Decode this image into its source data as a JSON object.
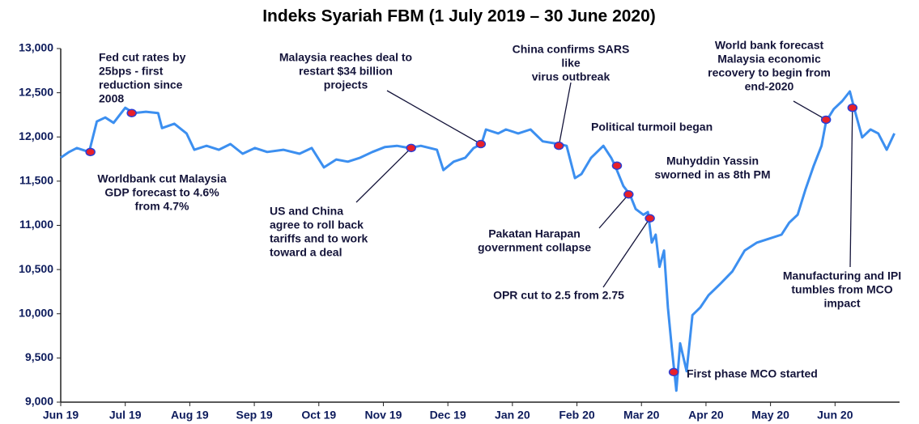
{
  "chart_data": {
    "type": "line",
    "title": "Indeks Syariah FBM  (1 July 2019 – 30 June 2020)",
    "xlim": [
      0,
      13
    ],
    "xticks": [
      {
        "value": 0,
        "label": "Jun 19"
      },
      {
        "value": 1,
        "label": "Jul 19"
      },
      {
        "value": 2,
        "label": "Aug 19"
      },
      {
        "value": 3,
        "label": "Sep 19"
      },
      {
        "value": 4,
        "label": "Oct 19"
      },
      {
        "value": 5,
        "label": "Nov 19"
      },
      {
        "value": 6,
        "label": "Dec 19"
      },
      {
        "value": 7,
        "label": "Jan 20"
      },
      {
        "value": 8,
        "label": "Feb 20"
      },
      {
        "value": 9,
        "label": "Mar 20"
      },
      {
        "value": 10,
        "label": "Apr 20"
      },
      {
        "value": 11,
        "label": "May 20"
      },
      {
        "value": 12,
        "label": "Jun 20"
      }
    ],
    "ylim": [
      9000,
      13000
    ],
    "yticks": [
      {
        "value": 9000,
        "label": "9,000"
      },
      {
        "value": 9500,
        "label": "9,500"
      },
      {
        "value": 10000,
        "label": "10,000"
      },
      {
        "value": 10500,
        "label": "10,500"
      },
      {
        "value": 11000,
        "label": "11,000"
      },
      {
        "value": 11500,
        "label": "11,500"
      },
      {
        "value": 12000,
        "label": "12,000"
      },
      {
        "value": 12500,
        "label": "12,500"
      },
      {
        "value": 13000,
        "label": "13,000"
      }
    ],
    "grid": false,
    "color": "#3c8ff0",
    "x": [
      0,
      0.13,
      0.25,
      0.44,
      0.56,
      0.69,
      0.82,
      1.0,
      1.13,
      1.32,
      1.51,
      1.57,
      1.76,
      1.95,
      2.07,
      2.26,
      2.45,
      2.63,
      2.82,
      3.01,
      3.2,
      3.45,
      3.7,
      3.89,
      4.08,
      4.27,
      4.45,
      4.64,
      4.83,
      5.02,
      5.21,
      5.4,
      5.58,
      5.83,
      5.93,
      6.09,
      6.27,
      6.4,
      6.52,
      6.59,
      6.78,
      6.9,
      7.09,
      7.28,
      7.47,
      7.72,
      7.84,
      7.97,
      8.07,
      8.22,
      8.41,
      8.53,
      8.59,
      8.72,
      8.82,
      8.91,
      9.03,
      9.1,
      9.16,
      9.22,
      9.28,
      9.35,
      9.41,
      9.47,
      9.54,
      9.6,
      9.7,
      9.79,
      9.91,
      10.04,
      10.23,
      10.41,
      10.6,
      10.79,
      10.98,
      11.17,
      11.29,
      11.42,
      11.54,
      11.67,
      11.79,
      11.86,
      11.98,
      12.11,
      12.23,
      12.3,
      12.42,
      12.55,
      12.67,
      12.8,
      12.92
    ],
    "values": [
      11765,
      11830,
      11875,
      11830,
      12175,
      12220,
      12160,
      12330,
      12270,
      12285,
      12270,
      12100,
      12150,
      12040,
      11855,
      11900,
      11855,
      11920,
      11810,
      11875,
      11830,
      11855,
      11810,
      11875,
      11655,
      11745,
      11720,
      11765,
      11830,
      11885,
      11900,
      11875,
      11900,
      11855,
      11625,
      11720,
      11765,
      11875,
      11920,
      12085,
      12040,
      12085,
      12040,
      12085,
      11950,
      11920,
      11900,
      11535,
      11580,
      11765,
      11900,
      11765,
      11675,
      11445,
      11350,
      11185,
      11120,
      11150,
      10805,
      10895,
      10530,
      10715,
      10070,
      9615,
      9130,
      9665,
      9350,
      9985,
      10070,
      10210,
      10345,
      10480,
      10715,
      10805,
      10850,
      10895,
      11030,
      11120,
      11400,
      11675,
      11900,
      12175,
      12315,
      12405,
      12515,
      12315,
      11995,
      12085,
      12040,
      11855,
      12040
    ],
    "annotations": [
      {
        "lines": [
          "Worldbank cut Malaysia",
          "GDP forecast to 4.6%",
          "from 4.7%"
        ],
        "x": 0.46,
        "y": 11830
      },
      {
        "lines": [
          "Fed cut rates by",
          "25bps - first",
          "reduction since",
          "2008"
        ],
        "x": 1.1,
        "y": 12270
      },
      {
        "lines": [
          "US and China",
          "agree to roll back",
          "tariffs and to work",
          "toward a deal"
        ],
        "x": 5.43,
        "y": 11875
      },
      {
        "lines": [
          "Malaysia reaches deal to",
          "restart $34 billion",
          "projects"
        ],
        "x": 6.51,
        "y": 11920
      },
      {
        "lines": [
          "China confirms SARS",
          "like",
          "virus outbreak"
        ],
        "x": 7.72,
        "y": 11900
      },
      {
        "lines": [
          "Political turmoil began"
        ]
      },
      {
        "lines": [
          "Muhyddin Yassin",
          "sworned in as 8th PM"
        ],
        "x": 8.62,
        "y": 11675
      },
      {
        "lines": [
          "Pakatan Harapan",
          "government collapse"
        ],
        "x": 8.8,
        "y": 11350
      },
      {
        "lines": [
          "OPR cut to 2.5 from 2.75"
        ],
        "x": 9.13,
        "y": 11080
      },
      {
        "lines": [
          "First phase MCO started"
        ],
        "x": 9.5,
        "y": 9340
      },
      {
        "lines": [
          "World bank forecast",
          "Malaysia economic",
          "recovery to begin from",
          "end-2020"
        ],
        "x": 11.86,
        "y": 12195
      },
      {
        "lines": [
          "Manufacturing and IPI",
          "tumbles from MCO",
          "impact"
        ],
        "x": 12.27,
        "y": 12330
      }
    ]
  }
}
